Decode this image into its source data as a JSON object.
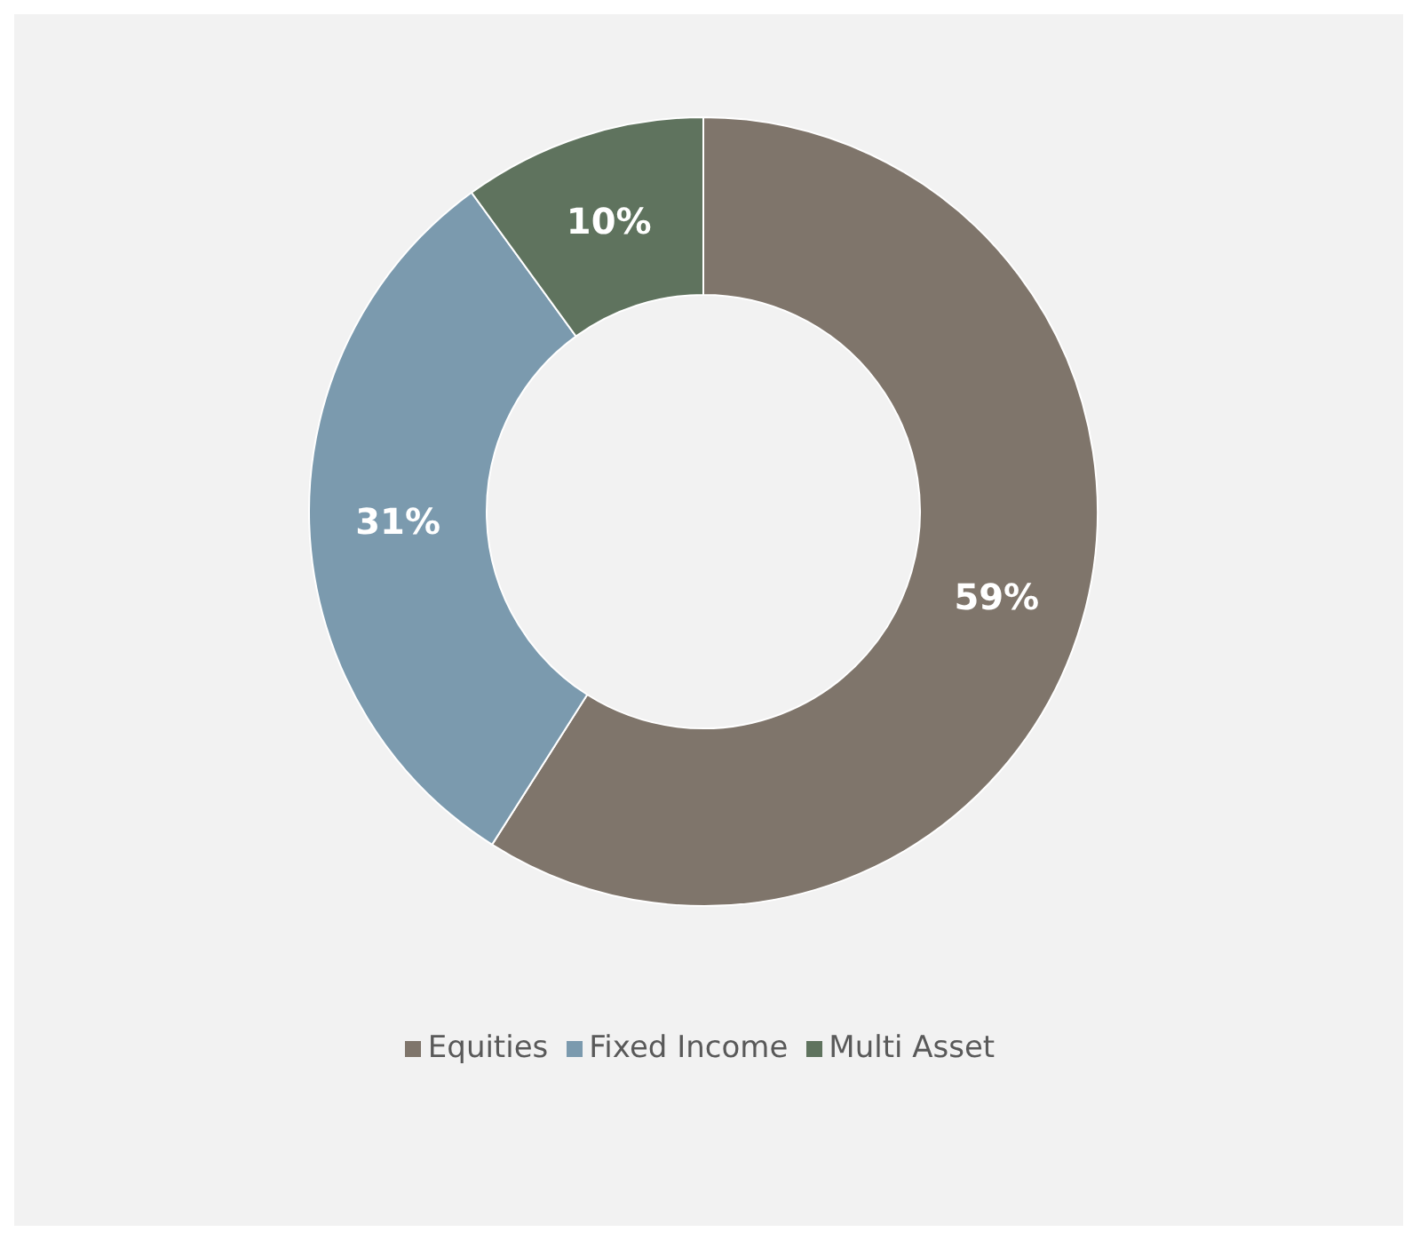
{
  "chart_data": {
    "type": "donut",
    "categories": [
      "Equities",
      "Fixed Income",
      "Multi Asset"
    ],
    "values": [
      59,
      31,
      10
    ],
    "colors": [
      "#7f756b",
      "#7b9aae",
      "#5f735e"
    ],
    "value_labels": [
      "59%",
      "31%",
      "10%"
    ],
    "legend": "bottom"
  }
}
